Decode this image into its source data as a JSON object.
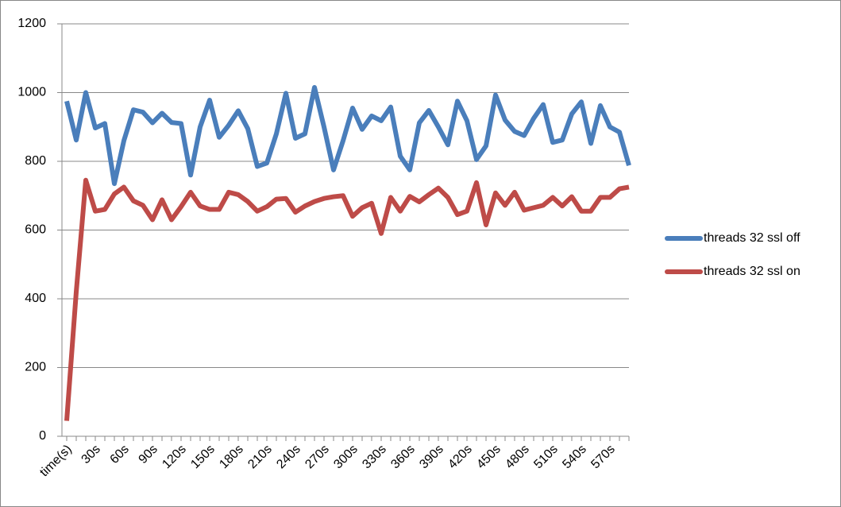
{
  "chart_data": {
    "type": "line",
    "categories": [
      "time(s)",
      null,
      null,
      "30s",
      null,
      null,
      "60s",
      null,
      null,
      "90s",
      null,
      null,
      "120s",
      null,
      null,
      "150s",
      null,
      null,
      "180s",
      null,
      null,
      "210s",
      null,
      null,
      "240s",
      null,
      null,
      "270s",
      null,
      null,
      "300s",
      null,
      null,
      "330s",
      null,
      null,
      "360s",
      null,
      null,
      "390s",
      null,
      null,
      "420s",
      null,
      null,
      "450s",
      null,
      null,
      "480s",
      null,
      null,
      "510s",
      null,
      null,
      "540s",
      null,
      null,
      "570s",
      null,
      null
    ],
    "series": [
      {
        "name": "threads 32 ssl off",
        "color": "#4a7ebb",
        "values": [
          975,
          862,
          1000,
          897,
          910,
          735,
          860,
          950,
          943,
          912,
          940,
          913,
          910,
          760,
          900,
          978,
          870,
          905,
          947,
          895,
          785,
          795,
          880,
          998,
          867,
          880,
          1015,
          900,
          775,
          860,
          955,
          893,
          932,
          918,
          958,
          815,
          775,
          912,
          948,
          900,
          848,
          975,
          918,
          805,
          845,
          993,
          920,
          887,
          875,
          925,
          965,
          855,
          862,
          938,
          973,
          852,
          962,
          900,
          885,
          788
        ]
      },
      {
        "name": "threads 32 ssl on",
        "color": "#be4b48",
        "values": [
          45,
          420,
          745,
          655,
          660,
          705,
          725,
          685,
          672,
          630,
          688,
          630,
          668,
          710,
          670,
          660,
          660,
          710,
          703,
          683,
          655,
          668,
          690,
          692,
          652,
          670,
          683,
          692,
          697,
          700,
          640,
          665,
          678,
          590,
          695,
          655,
          698,
          682,
          703,
          722,
          695,
          645,
          655,
          738,
          615,
          708,
          672,
          710,
          658,
          665,
          672,
          695,
          670,
          697,
          655,
          655,
          695,
          695,
          720,
          725
        ]
      }
    ],
    "ylim": [
      0,
      1200
    ],
    "yticks": [
      0,
      200,
      400,
      600,
      800,
      1000,
      1200
    ],
    "grid": true,
    "legend": "right"
  }
}
